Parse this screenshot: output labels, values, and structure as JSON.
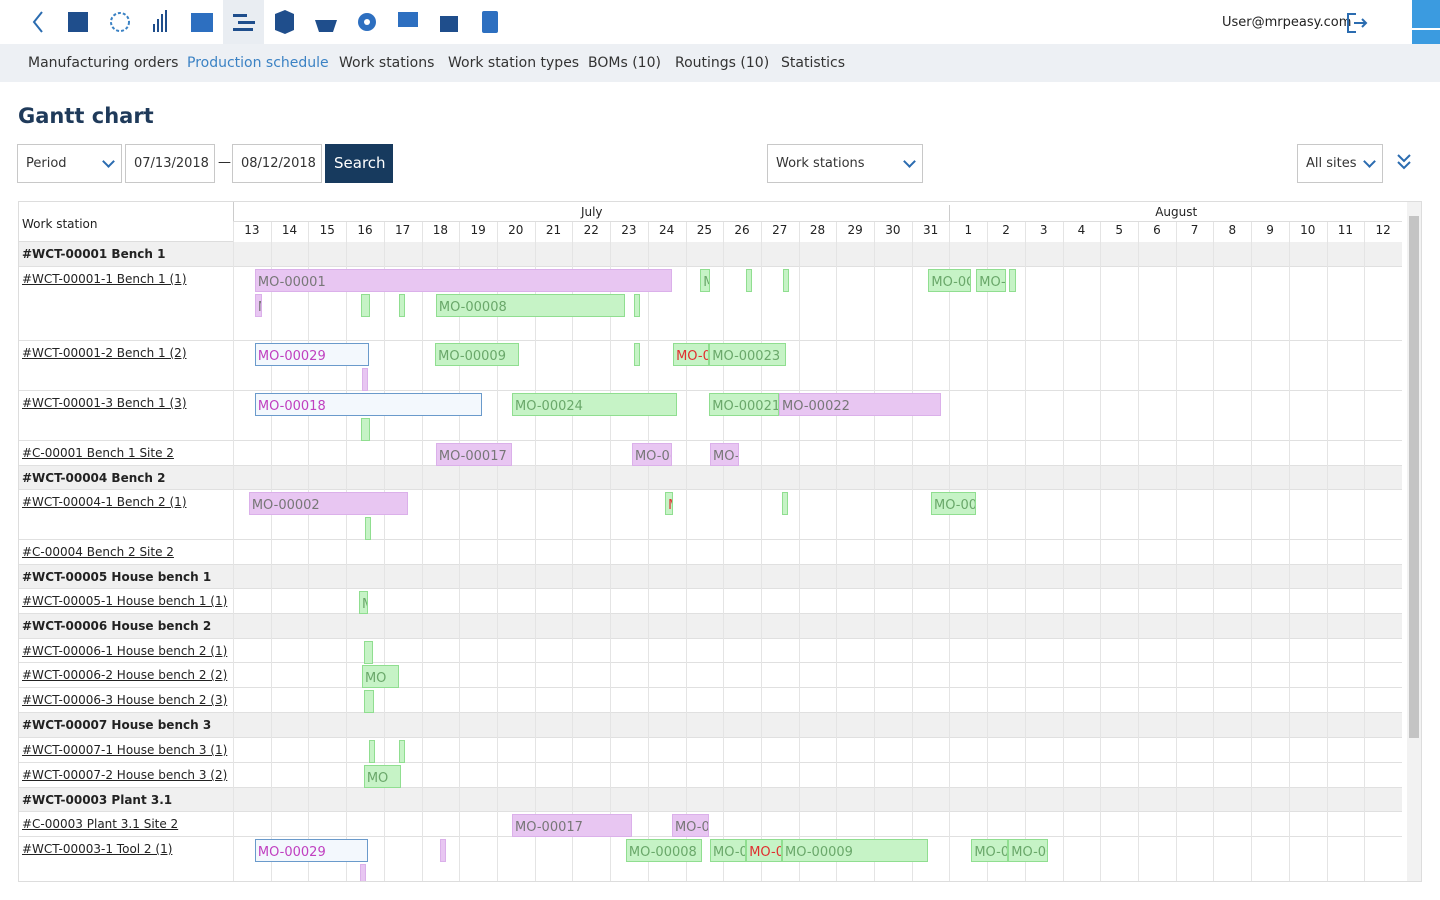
{
  "header": {
    "user": "User@mrpeasy.com"
  },
  "nav": [
    "Manufacturing orders",
    "Production schedule",
    "Work stations",
    "Work station types",
    "BOMs (10)",
    "Routings (10)",
    "Statistics"
  ],
  "title": "Gantt chart",
  "filters": {
    "period": "Period",
    "from": "07/13/2018",
    "to": "08/12/2018",
    "search": "Search",
    "group": "Work stations",
    "sites": "All sites"
  },
  "gantt": {
    "column_header": "Work station",
    "months": [
      "July",
      "August"
    ],
    "days": [
      13,
      14,
      15,
      16,
      17,
      18,
      19,
      20,
      21,
      22,
      23,
      24,
      25,
      26,
      27,
      28,
      29,
      30,
      31,
      1,
      2,
      3,
      4,
      5,
      6,
      7,
      8,
      9,
      10,
      11,
      12
    ],
    "xlim": [
      13,
      44
    ],
    "rows": [
      {
        "label": "#WCT-00001 Bench 1",
        "group": true
      },
      {
        "label": "#WCT-00001-1 Bench 1 (1)"
      },
      {
        "label": "#WCT-00001-2 Bench 1 (2)"
      },
      {
        "label": "#WCT-00001-3 Bench 1 (3)"
      },
      {
        "label": "#C-00001 Bench 1 Site 2"
      },
      {
        "label": "#WCT-00004 Bench 2",
        "group": true
      },
      {
        "label": "#WCT-00004-1 Bench 2 (1)"
      },
      {
        "label": "#C-00004 Bench 2 Site 2"
      },
      {
        "label": "#WCT-00005 House bench 1",
        "group": true
      },
      {
        "label": "#WCT-00005-1 House bench 1 (1)"
      },
      {
        "label": "#WCT-00006 House bench 2",
        "group": true
      },
      {
        "label": "#WCT-00006-1 House bench 2 (1)"
      },
      {
        "label": "#WCT-00006-2 House bench 2 (2)"
      },
      {
        "label": "#WCT-00006-3 House bench 2 (3)"
      },
      {
        "label": "#WCT-00007 House bench 3",
        "group": true
      },
      {
        "label": "#WCT-00007-1 House bench 3 (1)"
      },
      {
        "label": "#WCT-00007-2 House bench 3 (2)"
      },
      {
        "label": "#WCT-00003 Plant 3.1",
        "group": true
      },
      {
        "label": "#C-00003 Plant 3.1 Site 2"
      },
      {
        "label": "#WCT-00003-1 Tool 2 (1)"
      }
    ],
    "bars": [
      {
        "row": 1,
        "lane": 0,
        "start": 13.58,
        "end": 24.64,
        "style": "purple",
        "label": "MO-00001"
      },
      {
        "row": 1,
        "lane": 0,
        "start": 25.39,
        "end": 25.65,
        "style": "green",
        "label": "M"
      },
      {
        "row": 1,
        "lane": 0,
        "start": 26.61,
        "end": 26.74,
        "style": "green"
      },
      {
        "row": 1,
        "lane": 0,
        "start": 27.59,
        "end": 27.67,
        "style": "green"
      },
      {
        "row": 1,
        "lane": 0,
        "start": 31.44,
        "end": 32.58,
        "style": "green",
        "label": "MO-0C"
      },
      {
        "row": 1,
        "lane": 0,
        "start": 32.71,
        "end": 33.5,
        "style": "green",
        "label": "MO-("
      },
      {
        "row": 1,
        "lane": 0,
        "start": 33.58,
        "end": 33.77,
        "style": "green"
      },
      {
        "row": 1,
        "lane": 1,
        "start": 13.58,
        "end": 13.77,
        "style": "purple",
        "label": "M"
      },
      {
        "row": 1,
        "lane": 1,
        "start": 16.4,
        "end": 16.63,
        "style": "green"
      },
      {
        "row": 1,
        "lane": 1,
        "start": 17.4,
        "end": 17.48,
        "style": "green"
      },
      {
        "row": 1,
        "lane": 1,
        "start": 18.38,
        "end": 23.4,
        "style": "green",
        "label": "MO-00008"
      },
      {
        "row": 1,
        "lane": 1,
        "start": 23.64,
        "end": 23.72,
        "style": "green"
      },
      {
        "row": 2,
        "lane": 0,
        "start": 13.58,
        "end": 16.61,
        "style": "outline",
        "label": "MO-00029"
      },
      {
        "row": 2,
        "lane": 0,
        "start": 18.36,
        "end": 20.59,
        "style": "green",
        "label": "MO-00009"
      },
      {
        "row": 2,
        "lane": 0,
        "start": 23.64,
        "end": 23.74,
        "style": "green"
      },
      {
        "row": 2,
        "lane": 0,
        "start": 24.67,
        "end": 25.63,
        "style": "green-red",
        "label": "MO-0"
      },
      {
        "row": 2,
        "lane": 0,
        "start": 25.63,
        "end": 27.67,
        "style": "green",
        "label": "MO-00023"
      },
      {
        "row": 2,
        "lane": 1,
        "start": 16.42,
        "end": 16.53,
        "style": "purple"
      },
      {
        "row": 3,
        "lane": 0,
        "start": 13.58,
        "end": 19.6,
        "style": "outline",
        "label": "MO-00018"
      },
      {
        "row": 3,
        "lane": 0,
        "start": 20.4,
        "end": 24.78,
        "style": "green",
        "label": "MO-00024"
      },
      {
        "row": 3,
        "lane": 0,
        "start": 25.63,
        "end": 27.48,
        "style": "green",
        "label": "MO-00021"
      },
      {
        "row": 3,
        "lane": 0,
        "start": 27.48,
        "end": 31.78,
        "style": "purple",
        "label": "MO-00022"
      },
      {
        "row": 3,
        "lane": 1,
        "start": 16.4,
        "end": 16.63,
        "style": "green"
      },
      {
        "row": 4,
        "lane": 0,
        "start": 18.38,
        "end": 20.4,
        "style": "purple",
        "label": "MO-00017"
      },
      {
        "row": 4,
        "lane": 0,
        "start": 23.58,
        "end": 24.64,
        "style": "purple",
        "label": "MO-0("
      },
      {
        "row": 4,
        "lane": 0,
        "start": 25.65,
        "end": 26.42,
        "style": "purple",
        "label": "MO-"
      },
      {
        "row": 6,
        "lane": 0,
        "start": 13.42,
        "end": 17.64,
        "style": "purple",
        "label": "MO-00002"
      },
      {
        "row": 6,
        "lane": 0,
        "start": 24.46,
        "end": 24.67,
        "style": "green-red",
        "label": "M"
      },
      {
        "row": 6,
        "lane": 0,
        "start": 27.56,
        "end": 27.64,
        "style": "green"
      },
      {
        "row": 6,
        "lane": 0,
        "start": 31.51,
        "end": 32.71,
        "style": "green",
        "label": "MO-00"
      },
      {
        "row": 6,
        "lane": 1,
        "start": 16.5,
        "end": 16.63,
        "style": "green"
      },
      {
        "row": 9,
        "lane": 0,
        "start": 16.34,
        "end": 16.58,
        "style": "green",
        "label": "M"
      },
      {
        "row": 11,
        "lane": 0,
        "start": 16.47,
        "end": 16.71,
        "style": "green"
      },
      {
        "row": 12,
        "lane": 0,
        "start": 16.42,
        "end": 17.4,
        "style": "green",
        "label": "MO"
      },
      {
        "row": 13,
        "lane": 0,
        "start": 16.47,
        "end": 16.74,
        "style": "green"
      },
      {
        "row": 15,
        "lane": 0,
        "start": 16.61,
        "end": 16.69,
        "style": "green"
      },
      {
        "row": 15,
        "lane": 0,
        "start": 17.4,
        "end": 17.48,
        "style": "green"
      },
      {
        "row": 16,
        "lane": 0,
        "start": 16.47,
        "end": 17.46,
        "style": "green",
        "label": "MO"
      },
      {
        "row": 18,
        "lane": 0,
        "start": 20.4,
        "end": 23.58,
        "style": "purple",
        "label": "MO-00017"
      },
      {
        "row": 18,
        "lane": 0,
        "start": 24.64,
        "end": 25.63,
        "style": "purple",
        "label": "MO-0("
      },
      {
        "row": 19,
        "lane": 0,
        "start": 13.58,
        "end": 16.58,
        "style": "outline",
        "label": "MO-00029"
      },
      {
        "row": 19,
        "lane": 0,
        "start": 18.48,
        "end": 18.54,
        "style": "purple"
      },
      {
        "row": 19,
        "lane": 0,
        "start": 23.42,
        "end": 25.44,
        "style": "green",
        "label": "MO-00008"
      },
      {
        "row": 19,
        "lane": 0,
        "start": 25.65,
        "end": 26.61,
        "style": "green",
        "label": "MO-0"
      },
      {
        "row": 19,
        "lane": 0,
        "start": 26.61,
        "end": 27.56,
        "style": "green-red",
        "label": "MO-0"
      },
      {
        "row": 19,
        "lane": 0,
        "start": 27.56,
        "end": 31.43,
        "style": "green",
        "label": "MO-00009"
      },
      {
        "row": 19,
        "lane": 0,
        "start": 32.58,
        "end": 33.56,
        "style": "green",
        "label": "MO-0"
      },
      {
        "row": 19,
        "lane": 0,
        "start": 33.56,
        "end": 34.62,
        "style": "green",
        "label": "MO-0C"
      },
      {
        "row": 19,
        "lane": 1,
        "start": 16.37,
        "end": 16.53,
        "style": "purple"
      }
    ]
  }
}
